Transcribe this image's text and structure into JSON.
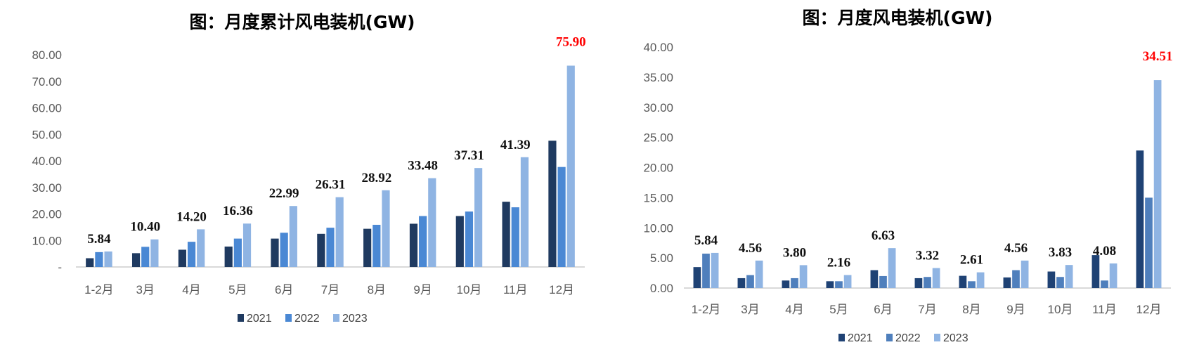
{
  "chart_data": [
    {
      "type": "bar",
      "title": "图：月度累计风电装机(GW)",
      "xlabel": "",
      "ylabel": "",
      "ylim": [
        0,
        80
      ],
      "yticks": [
        "-",
        "10.00",
        "20.00",
        "30.00",
        "40.00",
        "50.00",
        "60.00",
        "70.00",
        "80.00"
      ],
      "grid": false,
      "legend_position": "bottom",
      "categories": [
        "1-2月",
        "3月",
        "4月",
        "5月",
        "6月",
        "7月",
        "8月",
        "9月",
        "10月",
        "11月",
        "12月"
      ],
      "series": [
        {
          "name": "2021",
          "color": "#1f3a60",
          "values": [
            3.3,
            5.2,
            6.5,
            7.7,
            10.7,
            12.5,
            14.4,
            16.3,
            19.2,
            24.6,
            47.6
          ]
        },
        {
          "name": "2022",
          "color": "#4a88d4",
          "values": [
            5.6,
            7.6,
            9.5,
            10.7,
            12.9,
            14.8,
            15.9,
            19.2,
            20.9,
            22.5,
            37.7
          ]
        },
        {
          "name": "2023",
          "color": "#8fb4e3",
          "values": [
            5.84,
            10.4,
            14.2,
            16.36,
            22.99,
            26.31,
            28.92,
            33.48,
            37.31,
            41.39,
            75.9
          ]
        }
      ],
      "data_labels": [
        "5.84",
        "10.40",
        "14.20",
        "16.36",
        "22.99",
        "26.31",
        "28.92",
        "33.48",
        "37.31",
        "41.39",
        "75.90"
      ],
      "highlight_color": "#ff0000"
    },
    {
      "type": "bar",
      "title": "图：月度风电装机(GW)",
      "xlabel": "",
      "ylabel": "",
      "ylim": [
        0,
        40
      ],
      "yticks": [
        "0.00",
        "5.00",
        "10.00",
        "15.00",
        "20.00",
        "25.00",
        "30.00",
        "35.00",
        "40.00"
      ],
      "grid": false,
      "legend_position": "bottom",
      "categories": [
        "1-2月",
        "3月",
        "4月",
        "5月",
        "6月",
        "7月",
        "8月",
        "9月",
        "10月",
        "11月",
        "12月"
      ],
      "series": [
        {
          "name": "2021",
          "color": "#1f4274",
          "values": [
            3.48,
            1.64,
            1.25,
            1.13,
            2.97,
            1.64,
            2.03,
            1.76,
            2.74,
            5.47,
            22.83
          ]
        },
        {
          "name": "2022",
          "color": "#4f7fbc",
          "values": [
            5.71,
            2.15,
            1.64,
            1.13,
            1.99,
            1.84,
            1.13,
            2.97,
            1.84,
            1.25,
            15.0
          ]
        },
        {
          "name": "2023",
          "color": "#8fb4e3",
          "values": [
            5.84,
            4.56,
            3.8,
            2.16,
            6.63,
            3.32,
            2.61,
            4.56,
            3.83,
            4.08,
            34.51
          ]
        }
      ],
      "data_labels": [
        "5.84",
        "4.56",
        "3.80",
        "2.16",
        "6.63",
        "3.32",
        "2.61",
        "4.56",
        "3.83",
        "4.08",
        "34.51"
      ],
      "highlight_color": "#ff0000"
    }
  ]
}
